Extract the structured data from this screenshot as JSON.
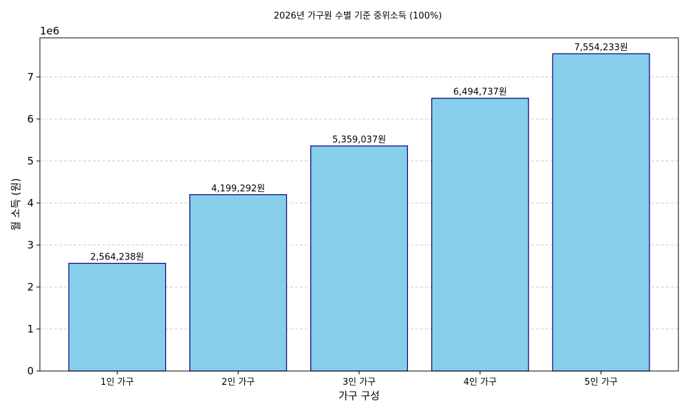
{
  "chart_data": {
    "type": "bar",
    "title": "2026년 가구원 수별 기준 중위소득 (100%)",
    "xlabel": "가구 구성",
    "ylabel": "월 소득 (원)",
    "offset_label": "1e6",
    "categories": [
      "1인 가구",
      "2인 가구",
      "3인 가구",
      "4인 가구",
      "5인 가구"
    ],
    "values": [
      2564238,
      4199292,
      5359037,
      6494737,
      7554233
    ],
    "data_labels": [
      "2,564,238원",
      "4,199,292원",
      "5,359,037원",
      "6,494,737원",
      "7,554,233원"
    ],
    "ylim": [
      0,
      7932000
    ],
    "yticks": [
      0,
      1000000,
      2000000,
      3000000,
      4000000,
      5000000,
      6000000,
      7000000
    ],
    "ytick_labels": [
      "0",
      "1",
      "2",
      "3",
      "4",
      "5",
      "6",
      "7"
    ],
    "grid": "y-dashed",
    "colors": {
      "bar_fill": "#87ceeb",
      "bar_edge": "#0a0a80",
      "grid": "#c8c8c8"
    }
  }
}
